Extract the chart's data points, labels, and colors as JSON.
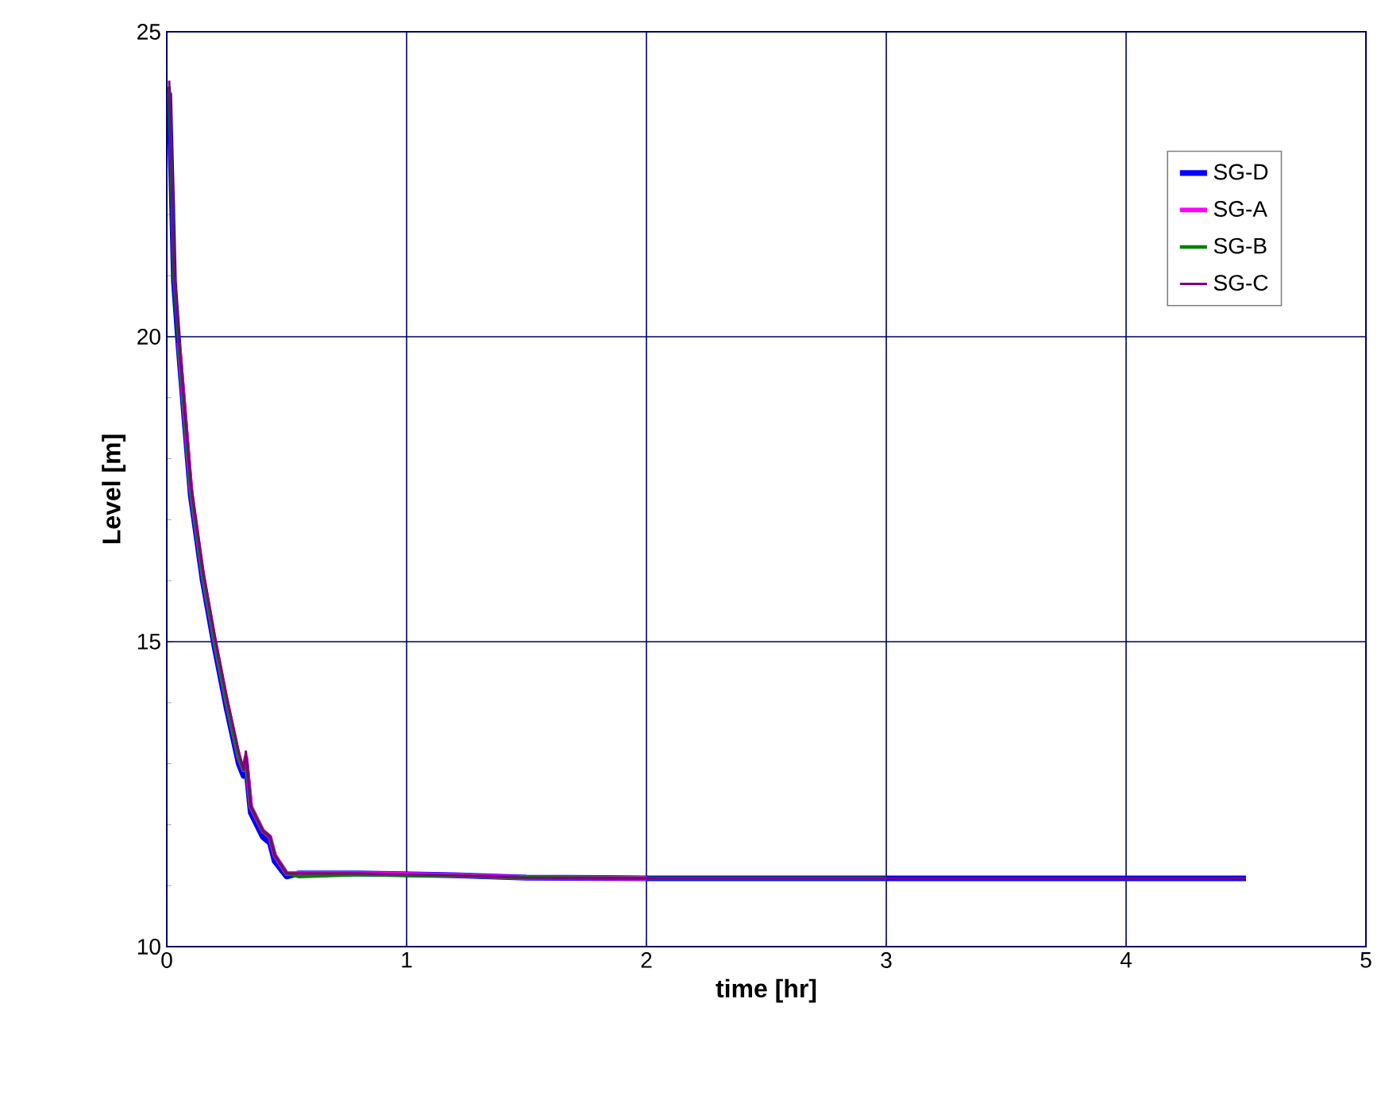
{
  "chart_data": {
    "type": "line",
    "xlabel": "time [hr]",
    "ylabel": "Level [m]",
    "xlim": [
      0,
      5
    ],
    "ylim": [
      10,
      25
    ],
    "xticks": [
      0,
      1,
      2,
      3,
      4,
      5
    ],
    "yticks": [
      10,
      15,
      20,
      25
    ],
    "grid": true,
    "legend": "top right",
    "line_style": "solid",
    "marker": "none",
    "x": [
      0.01,
      0.02,
      0.03,
      0.05,
      0.1,
      0.15,
      0.2,
      0.25,
      0.3,
      0.32,
      0.33,
      0.35,
      0.4,
      0.43,
      0.45,
      0.5,
      0.55,
      0.8,
      1.2,
      1.5,
      2,
      3,
      4,
      4.5
    ],
    "series": [
      {
        "name": "SG-D",
        "color": "#0000ff",
        "values": [
          24.0,
          22.5,
          20.9,
          19.8,
          17.4,
          16.0,
          14.9,
          13.9,
          13.0,
          12.8,
          13.0,
          12.2,
          11.8,
          11.7,
          11.4,
          11.15,
          11.2,
          11.2,
          11.17,
          11.13,
          11.12,
          11.12,
          11.12,
          11.12
        ]
      },
      {
        "name": "SG-A",
        "color": "#ff00ff",
        "values": [
          null,
          null,
          null,
          19.9,
          17.5,
          16.1,
          15.0,
          14.0,
          13.1,
          12.9,
          13.1,
          12.3,
          11.9,
          11.8,
          11.5,
          11.2,
          11.2,
          11.2,
          11.17,
          11.13,
          11.12,
          null,
          null,
          null
        ]
      },
      {
        "name": "SG-B",
        "color": "#008000",
        "values": [
          24.1,
          22.6,
          21.0,
          19.9,
          17.5,
          16.1,
          15.0,
          14.0,
          13.1,
          12.9,
          13.1,
          12.3,
          11.9,
          11.8,
          11.5,
          11.2,
          11.15,
          11.18,
          11.16,
          11.13,
          11.12,
          11.12,
          null,
          null
        ]
      },
      {
        "name": "SG-C",
        "color": "#800080",
        "values": [
          24.2,
          22.7,
          21.1,
          20.0,
          17.6,
          16.2,
          15.1,
          14.1,
          13.2,
          12.9,
          13.2,
          12.3,
          11.9,
          11.8,
          11.5,
          11.2,
          11.2,
          11.2,
          11.17,
          11.13,
          11.12,
          11.12,
          11.12,
          11.12
        ]
      }
    ]
  }
}
